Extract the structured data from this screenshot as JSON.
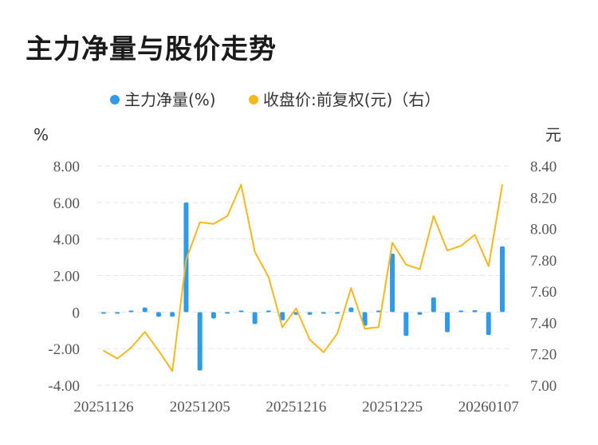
{
  "title": "主力净量与股价走势",
  "chart_data": {
    "type": "bar+line",
    "legend": [
      {
        "label": "主力净量(%)",
        "color": "#2f9be8"
      },
      {
        "label": "收盘价:前复权(元)（右）",
        "color": "#f5b81c"
      }
    ],
    "left_unit": "%",
    "right_unit": "元",
    "left_ticks": [
      "8.00",
      "6.00",
      "4.00",
      "2.00",
      "0",
      "-2.00",
      "-4.00"
    ],
    "right_ticks": [
      "8.40",
      "8.20",
      "8.00",
      "7.80",
      "7.60",
      "7.40",
      "7.20",
      "7.00"
    ],
    "x_tick_labels": [
      {
        "index": 0,
        "label": "20251126"
      },
      {
        "index": 7,
        "label": "20251205"
      },
      {
        "index": 14,
        "label": "20251216"
      },
      {
        "index": 21,
        "label": "20251225"
      },
      {
        "index": 28,
        "label": "20260107"
      }
    ],
    "ylim_left": [
      -4,
      8
    ],
    "ylim_right": [
      7.0,
      8.4
    ],
    "bars": [
      -0.05,
      -0.05,
      0.05,
      0.25,
      -0.25,
      -0.25,
      6.0,
      -3.2,
      -0.35,
      -0.05,
      0.05,
      -0.65,
      0.0,
      -0.45,
      -0.15,
      -0.15,
      -0.05,
      -0.05,
      0.25,
      -0.75,
      0.0,
      3.2,
      -1.3,
      -0.15,
      0.8,
      -1.1,
      0.0,
      0.1,
      -1.25,
      3.6
    ],
    "line": [
      7.22,
      7.17,
      7.24,
      7.34,
      7.22,
      7.09,
      7.8,
      8.04,
      8.03,
      8.08,
      8.28,
      7.85,
      7.69,
      7.37,
      7.49,
      7.29,
      7.21,
      7.33,
      7.62,
      7.36,
      7.37,
      7.91,
      7.77,
      7.74,
      8.08,
      7.86,
      7.89,
      7.96,
      7.76,
      8.28
    ]
  }
}
